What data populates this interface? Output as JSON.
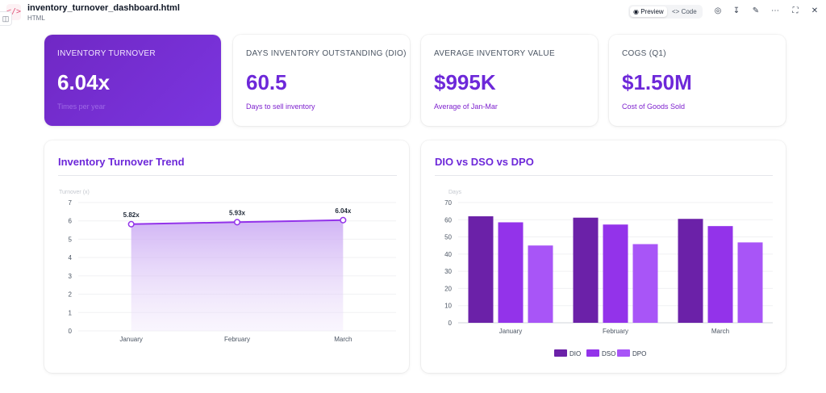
{
  "file": {
    "name": "inventory_turnover_dashboard.html",
    "type": "HTML",
    "icon": "code-file-icon"
  },
  "toolbar": {
    "preview_label": "Preview",
    "code_label": "Code",
    "active": "Preview",
    "icons": [
      "globe-icon",
      "download-icon",
      "edit-icon",
      "more-icon",
      "fullscreen-icon"
    ]
  },
  "kpis": [
    {
      "label": "INVENTORY TURNOVER",
      "value": "6.04x",
      "sub": "Times per year",
      "featured": true
    },
    {
      "label": "DAYS INVENTORY OUTSTANDING (DIO)",
      "value": "60.5",
      "sub": "Days to sell inventory"
    },
    {
      "label": "AVERAGE INVENTORY VALUE",
      "value": "$995K",
      "sub": "Average of Jan-Mar"
    },
    {
      "label": "COGS (Q1)",
      "value": "$1.50M",
      "sub": "Cost of Goods Sold"
    }
  ],
  "colors": {
    "accent": "#6d28d9",
    "dio": "#6b21a8",
    "dso": "#9333ea",
    "dpo": "#a855f7",
    "line": "#9333ea"
  },
  "chart_data": [
    {
      "type": "line",
      "title": "Inventory Turnover Trend",
      "ylabel": "Turnover (x)",
      "categories": [
        "January",
        "February",
        "March"
      ],
      "series": [
        {
          "values": [
            5.82,
            5.93,
            6.04
          ]
        }
      ],
      "data_labels": [
        "5.82x",
        "5.93x",
        "6.04x"
      ],
      "ylim": [
        0,
        7
      ],
      "yticks": [
        0,
        1,
        2,
        3,
        4,
        5,
        6,
        7
      ],
      "fill": true,
      "grid": true
    },
    {
      "type": "bar",
      "title": "DIO vs DSO vs DPO",
      "ylabel": "Days",
      "categories": [
        "January",
        "February",
        "March"
      ],
      "series": [
        {
          "name": "DIO",
          "values": [
            62,
            61.2,
            60.5
          ]
        },
        {
          "name": "DSO",
          "values": [
            58.5,
            57.2,
            56.3
          ]
        },
        {
          "name": "DPO",
          "values": [
            45,
            45.8,
            46.8
          ]
        }
      ],
      "ylim": [
        0,
        70
      ],
      "yticks": [
        0,
        10,
        20,
        30,
        40,
        50,
        60,
        70
      ],
      "legend": "bottom",
      "grid": true
    }
  ]
}
